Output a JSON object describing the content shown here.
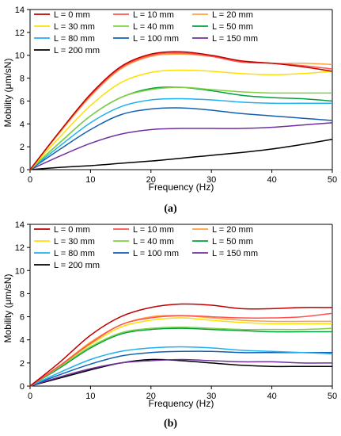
{
  "captions": {
    "a": "(a)",
    "b": "(b)"
  },
  "chart_data": [
    {
      "type": "line",
      "panel": "(a)",
      "xlabel": "Frequency (Hz)",
      "ylabel": "Mobility (μm/sN)",
      "xlim": [
        0,
        50
      ],
      "ylim": [
        0,
        14
      ],
      "xticks": [
        0,
        10,
        20,
        30,
        40,
        50
      ],
      "yticks": [
        0,
        2,
        4,
        6,
        8,
        10,
        12,
        14
      ],
      "grid": false,
      "legend_position": "top-left",
      "x": [
        0,
        5,
        10,
        15,
        20,
        25,
        30,
        35,
        40,
        45,
        50
      ],
      "series": [
        {
          "name": "L = 0 mm",
          "color": "#c00000",
          "values": [
            0,
            3.4,
            6.6,
            9.0,
            10.1,
            10.3,
            10.0,
            9.5,
            9.3,
            9.0,
            8.6
          ]
        },
        {
          "name": "L = 10 mm",
          "color": "#ff5050",
          "values": [
            0,
            3.4,
            6.5,
            8.9,
            10.0,
            10.2,
            9.9,
            9.4,
            9.3,
            9.1,
            8.8
          ]
        },
        {
          "name": "L = 20 mm",
          "color": "#ffa040",
          "values": [
            0,
            3.3,
            6.4,
            8.8,
            9.9,
            10.1,
            9.9,
            9.5,
            9.3,
            9.3,
            9.2
          ]
        },
        {
          "name": "L = 30 mm",
          "color": "#ffe000",
          "values": [
            0,
            2.9,
            5.6,
            7.6,
            8.5,
            8.7,
            8.6,
            8.4,
            8.3,
            8.4,
            8.6
          ]
        },
        {
          "name": "L = 40 mm",
          "color": "#80d040",
          "values": [
            0,
            2.4,
            4.7,
            6.3,
            7.0,
            7.2,
            7.0,
            6.8,
            6.7,
            6.7,
            6.7
          ]
        },
        {
          "name": "L = 50 mm",
          "color": "#00a040",
          "values": [
            0,
            2.4,
            4.7,
            6.3,
            7.1,
            7.2,
            6.9,
            6.5,
            6.3,
            6.2,
            6.0
          ]
        },
        {
          "name": "L = 80 mm",
          "color": "#20b0f0",
          "values": [
            0,
            2.1,
            4.1,
            5.5,
            6.1,
            6.2,
            6.1,
            5.9,
            5.8,
            5.8,
            5.8
          ]
        },
        {
          "name": "L = 100 mm",
          "color": "#1060b0",
          "values": [
            0,
            1.8,
            3.5,
            4.8,
            5.3,
            5.4,
            5.2,
            4.9,
            4.7,
            4.5,
            4.3
          ]
        },
        {
          "name": "L = 150 mm",
          "color": "#7030a0",
          "values": [
            0,
            1.2,
            2.3,
            3.1,
            3.5,
            3.6,
            3.6,
            3.6,
            3.7,
            3.9,
            4.1
          ]
        },
        {
          "name": "L = 200 mm",
          "color": "#000000",
          "values": [
            0,
            0.2,
            0.35,
            0.55,
            0.75,
            1.0,
            1.25,
            1.5,
            1.8,
            2.2,
            2.65
          ]
        }
      ]
    },
    {
      "type": "line",
      "panel": "(b)",
      "xlabel": "Frequency (Hz)",
      "ylabel": "Mobility (μm/sN)",
      "xlim": [
        0,
        50
      ],
      "ylim": [
        0,
        14
      ],
      "xticks": [
        0,
        10,
        20,
        30,
        40,
        50
      ],
      "yticks": [
        0,
        2,
        4,
        6,
        8,
        10,
        12,
        14
      ],
      "grid": false,
      "legend_position": "top-left",
      "x": [
        0,
        5,
        10,
        15,
        20,
        25,
        30,
        35,
        40,
        45,
        50
      ],
      "series": [
        {
          "name": "L = 0 mm",
          "color": "#c00000",
          "values": [
            0,
            2.1,
            4.4,
            6.0,
            6.8,
            7.1,
            7.0,
            6.7,
            6.7,
            6.8,
            6.8
          ]
        },
        {
          "name": "L = 10 mm",
          "color": "#ff5050",
          "values": [
            0,
            1.8,
            3.7,
            5.3,
            5.9,
            6.1,
            6.0,
            5.9,
            5.9,
            6.0,
            6.3
          ]
        },
        {
          "name": "L = 20 mm",
          "color": "#ffa040",
          "values": [
            0,
            1.8,
            3.8,
            5.3,
            6.0,
            6.1,
            5.9,
            5.7,
            5.6,
            5.6,
            5.6
          ]
        },
        {
          "name": "L = 30 mm",
          "color": "#ffe000",
          "values": [
            0,
            1.8,
            3.6,
            5.1,
            5.7,
            5.9,
            5.7,
            5.5,
            5.4,
            5.4,
            5.4
          ]
        },
        {
          "name": "L = 40 mm",
          "color": "#80d040",
          "values": [
            0,
            1.7,
            3.4,
            4.6,
            5.0,
            5.1,
            5.0,
            4.9,
            4.9,
            4.9,
            5.0
          ]
        },
        {
          "name": "L = 50 mm",
          "color": "#00a040",
          "values": [
            0,
            1.6,
            3.3,
            4.5,
            4.9,
            5.0,
            4.9,
            4.8,
            4.7,
            4.7,
            4.7
          ]
        },
        {
          "name": "L = 80 mm",
          "color": "#20b0f0",
          "values": [
            0,
            1.2,
            2.3,
            3.0,
            3.3,
            3.4,
            3.3,
            3.1,
            3.0,
            2.9,
            2.8
          ]
        },
        {
          "name": "L = 100 mm",
          "color": "#1060b0",
          "values": [
            0,
            1.0,
            1.9,
            2.6,
            2.9,
            3.0,
            3.0,
            2.9,
            2.9,
            2.9,
            2.9
          ]
        },
        {
          "name": "L = 150 mm",
          "color": "#7030a0",
          "values": [
            0,
            0.8,
            1.5,
            2.0,
            2.2,
            2.3,
            2.2,
            2.1,
            2.1,
            2.0,
            2.0
          ]
        },
        {
          "name": "L = 200 mm",
          "color": "#000000",
          "values": [
            0,
            0.7,
            1.4,
            2.0,
            2.3,
            2.2,
            2.0,
            1.8,
            1.7,
            1.7,
            1.7
          ]
        }
      ]
    }
  ]
}
